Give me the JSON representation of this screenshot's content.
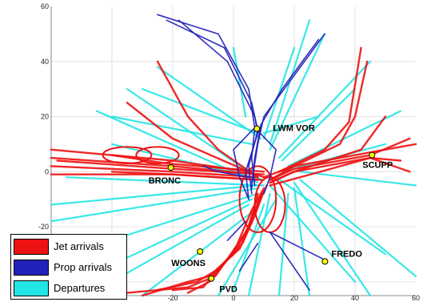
{
  "chart_data": {
    "type": "scatter",
    "xlim": [
      -60,
      60
    ],
    "ylim": [
      -45,
      60
    ],
    "x_ticks": [
      "-20",
      "0",
      "20",
      "40",
      "60"
    ],
    "y_ticks": [
      "60",
      "40",
      "20",
      "0",
      "-20"
    ],
    "grid": true,
    "legend_placement": "bottom-left",
    "series_colors": {
      "jet_arrivals": "#ee1111",
      "prop_arrivals": "#2222bb",
      "departures": "#22e6e6"
    },
    "legend": [
      {
        "label": "Jet arrivals",
        "color": "#ee1111"
      },
      {
        "label": "Prop arrivals",
        "color": "#2222bb"
      },
      {
        "label": "Departures",
        "color": "#22e6e6"
      }
    ],
    "waypoints": [
      {
        "name": "LWM VOR",
        "x": 7.7,
        "y": 15.6
      },
      {
        "name": "SCUPP",
        "x": 45.6,
        "y": 6.0
      },
      {
        "name": "BRONC",
        "x": -20.6,
        "y": 1.5
      },
      {
        "name": "FREDO",
        "x": 30.1,
        "y": -32.6
      },
      {
        "name": "WOONS",
        "x": -11.0,
        "y": -29.0
      },
      {
        "name": "PVD",
        "x": -7.3,
        "y": -38.8
      }
    ],
    "tracks": {
      "departures": [
        [
          [
            8,
            -5
          ],
          [
            -60,
            -12
          ]
        ],
        [
          [
            8,
            -6
          ],
          [
            -60,
            -18
          ]
        ],
        [
          [
            8,
            -8
          ],
          [
            -55,
            -30
          ]
        ],
        [
          [
            6,
            -10
          ],
          [
            -50,
            -39
          ]
        ],
        [
          [
            8,
            -4
          ],
          [
            -45,
            22
          ]
        ],
        [
          [
            9,
            -3
          ],
          [
            -35,
            30
          ]
        ],
        [
          [
            10,
            -3
          ],
          [
            -40,
            10
          ]
        ],
        [
          [
            10,
            -5
          ],
          [
            -55,
            -2
          ]
        ],
        [
          [
            12,
            -8
          ],
          [
            5,
            -45
          ]
        ],
        [
          [
            14,
            -10
          ],
          [
            -5,
            -45
          ]
        ],
        [
          [
            18,
            -8
          ],
          [
            15,
            -45
          ]
        ],
        [
          [
            20,
            -6
          ],
          [
            25,
            -45
          ]
        ],
        [
          [
            20,
            -4
          ],
          [
            45,
            -45
          ]
        ],
        [
          [
            22,
            -3
          ],
          [
            60,
            -38
          ]
        ],
        [
          [
            22,
            0
          ],
          [
            60,
            -5
          ]
        ],
        [
          [
            18,
            2
          ],
          [
            55,
            22
          ]
        ],
        [
          [
            15,
            5
          ],
          [
            45,
            40
          ]
        ],
        [
          [
            12,
            8
          ],
          [
            30,
            50
          ]
        ],
        [
          [
            12,
            10
          ],
          [
            25,
            55
          ]
        ],
        [
          [
            10,
            12
          ],
          [
            20,
            45
          ]
        ],
        [
          [
            10,
            14
          ],
          [
            28,
            20
          ]
        ],
        [
          [
            9,
            12
          ],
          [
            -25,
            38
          ]
        ],
        [
          [
            8,
            14
          ],
          [
            -30,
            30
          ]
        ],
        [
          [
            6,
            10
          ],
          [
            -40,
            20
          ]
        ],
        [
          [
            12,
            -5
          ],
          [
            40,
            -40
          ]
        ],
        [
          [
            14,
            -2
          ],
          [
            50,
            -30
          ]
        ],
        [
          [
            16,
            0
          ],
          [
            50,
            10
          ]
        ],
        [
          [
            16,
            4
          ],
          [
            40,
            30
          ]
        ],
        [
          [
            4,
            20
          ],
          [
            0,
            45
          ]
        ],
        [
          [
            5,
            -12
          ],
          [
            -45,
            -43
          ]
        ],
        [
          [
            7,
            -14
          ],
          [
            -30,
            -45
          ]
        ],
        [
          [
            10,
            -12
          ],
          [
            0,
            -43
          ]
        ]
      ],
      "jet_arrivals": [
        [
          [
            -60,
            8
          ],
          [
            -20,
            4
          ],
          [
            5,
            0
          ],
          [
            10,
            -2
          ]
        ],
        [
          [
            -60,
            5
          ],
          [
            -20,
            2
          ],
          [
            8,
            -1
          ]
        ],
        [
          [
            -60,
            2
          ],
          [
            -20,
            0
          ],
          [
            8,
            -2
          ]
        ],
        [
          [
            -60,
            -1
          ],
          [
            -20,
            -1
          ],
          [
            8,
            -3
          ]
        ],
        [
          [
            -58,
            4
          ],
          [
            -20,
            1
          ],
          [
            10,
            -1
          ]
        ],
        [
          [
            -40,
            6
          ],
          [
            -22,
            3
          ],
          [
            10,
            0
          ]
        ],
        [
          [
            -40,
            0
          ],
          [
            -20,
            -1
          ],
          [
            9,
            -3
          ]
        ],
        [
          [
            60,
            10
          ],
          [
            45,
            7
          ],
          [
            20,
            2
          ],
          [
            10,
            -2
          ]
        ],
        [
          [
            58,
            12
          ],
          [
            45,
            6
          ],
          [
            20,
            1
          ],
          [
            12,
            -3
          ]
        ],
        [
          [
            55,
            4
          ],
          [
            45,
            5
          ],
          [
            20,
            0
          ],
          [
            12,
            -4
          ]
        ],
        [
          [
            58,
            0
          ],
          [
            45,
            5
          ],
          [
            22,
            -2
          ],
          [
            12,
            -5
          ]
        ],
        [
          [
            50,
            20
          ],
          [
            42,
            8
          ],
          [
            20,
            0
          ],
          [
            12,
            -4
          ]
        ],
        [
          [
            44,
            40
          ],
          [
            40,
            20
          ],
          [
            35,
            10
          ],
          [
            20,
            2
          ],
          [
            12,
            -3
          ]
        ],
        [
          [
            42,
            45
          ],
          [
            38,
            18
          ],
          [
            30,
            8
          ],
          [
            15,
            0
          ]
        ],
        [
          [
            -30,
            -45
          ],
          [
            -15,
            -40
          ],
          [
            -8,
            -38
          ],
          [
            0,
            -30
          ],
          [
            5,
            -20
          ],
          [
            8,
            -8
          ]
        ],
        [
          [
            -25,
            -43
          ],
          [
            -12,
            -40
          ],
          [
            -6,
            -36
          ],
          [
            2,
            -28
          ],
          [
            6,
            -18
          ],
          [
            9,
            -8
          ]
        ],
        [
          [
            -20,
            -43
          ],
          [
            -10,
            -42
          ],
          [
            -4,
            -34
          ],
          [
            3,
            -26
          ],
          [
            7,
            -16
          ],
          [
            10,
            -7
          ]
        ],
        [
          [
            -35,
            -44
          ],
          [
            -15,
            -42
          ],
          [
            -6,
            -38
          ],
          [
            1,
            -27
          ],
          [
            6,
            -14
          ],
          [
            10,
            -6
          ]
        ],
        [
          [
            -15,
            -44
          ],
          [
            -8,
            -40
          ],
          [
            -2,
            -32
          ],
          [
            4,
            -22
          ],
          [
            8,
            -12
          ],
          [
            11,
            -5
          ]
        ],
        [
          [
            -25,
            40
          ],
          [
            -15,
            20
          ],
          [
            -5,
            8
          ],
          [
            8,
            -2
          ]
        ],
        [
          [
            -35,
            25
          ],
          [
            -20,
            12
          ],
          [
            5,
            0
          ]
        ]
      ],
      "prop_arrivals": [
        [
          [
            -25,
            57
          ],
          [
            -5,
            50
          ],
          [
            5,
            30
          ],
          [
            7,
            16
          ],
          [
            6,
            5
          ],
          [
            7,
            -5
          ]
        ],
        [
          [
            -22,
            55
          ],
          [
            -3,
            45
          ],
          [
            6,
            25
          ],
          [
            8,
            15
          ],
          [
            5,
            2
          ],
          [
            6,
            -8
          ]
        ],
        [
          [
            -18,
            55
          ],
          [
            -2,
            40
          ],
          [
            7,
            20
          ],
          [
            8,
            14
          ],
          [
            4,
            0
          ],
          [
            5,
            -10
          ]
        ],
        [
          [
            30,
            50
          ],
          [
            20,
            35
          ],
          [
            10,
            20
          ],
          [
            8,
            10
          ],
          [
            6,
            -4
          ]
        ],
        [
          [
            28,
            48
          ],
          [
            16,
            30
          ],
          [
            9,
            17
          ],
          [
            7,
            5
          ],
          [
            6,
            -6
          ]
        ],
        [
          [
            7,
            16
          ],
          [
            14,
            8
          ],
          [
            12,
            -2
          ],
          [
            10,
            -8
          ]
        ],
        [
          [
            7,
            16
          ],
          [
            0,
            8
          ],
          [
            2,
            -2
          ],
          [
            5,
            -10
          ]
        ],
        [
          [
            5,
            -2
          ],
          [
            -5,
            0
          ],
          [
            -10,
            2
          ]
        ],
        [
          [
            12,
            -22
          ],
          [
            30,
            -32
          ]
        ],
        [
          [
            12,
            -22
          ],
          [
            25,
            -43
          ]
        ],
        [
          [
            8,
            -26
          ],
          [
            2,
            -36
          ]
        ],
        [
          [
            4,
            -18
          ],
          [
            -2,
            -25
          ]
        ]
      ]
    }
  },
  "legend": {
    "items": [
      {
        "label": "Jet arrivals",
        "color": "#ee1111"
      },
      {
        "label": "Prop arrivals",
        "color": "#2222bb"
      },
      {
        "label": "Departures",
        "color": "#22e6e6"
      }
    ]
  }
}
